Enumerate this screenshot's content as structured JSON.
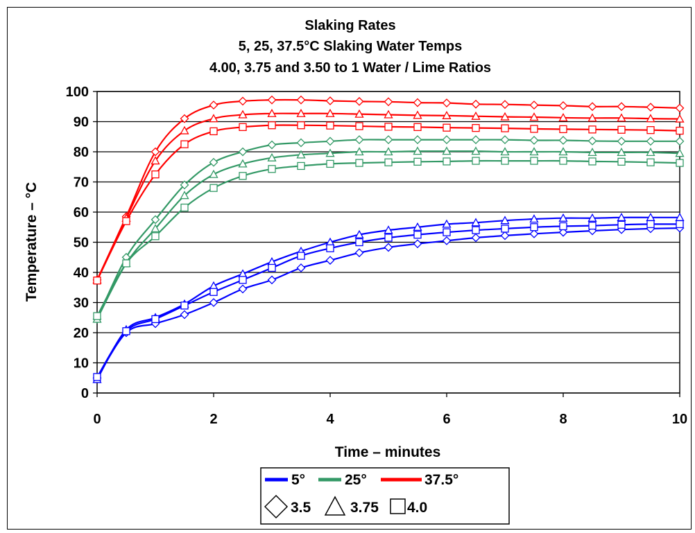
{
  "chart_data": {
    "type": "line",
    "title_lines": [
      "Slaking Rates",
      "5, 25, 37.5°C Slaking Water Temps",
      "4.00, 3.75 and 3.50 to 1 Water / Lime Ratios"
    ],
    "xlabel": "Time – minutes",
    "ylabel": "Temperature – °C",
    "xlim": [
      0,
      10
    ],
    "ylim": [
      0,
      100
    ],
    "x_ticks": [
      "0",
      "2",
      "4",
      "6",
      "8",
      "10"
    ],
    "y_ticks": [
      "0",
      "10",
      "20",
      "30",
      "40",
      "50",
      "60",
      "70",
      "80",
      "90",
      "100"
    ],
    "grid": "horizontal",
    "x": [
      0,
      0.5,
      1,
      1.5,
      2,
      2.5,
      3,
      3.5,
      4,
      4.5,
      5,
      5.5,
      6,
      6.5,
      7,
      7.5,
      8,
      8.5,
      9,
      9.5,
      10
    ],
    "colors": {
      "5": "#0000ff",
      "25": "#339966",
      "37.5": "#ff0000"
    },
    "legend": {
      "colors": [
        {
          "label": "5°",
          "color": "#0000ff"
        },
        {
          "label": "25°",
          "color": "#339966"
        },
        {
          "label": "37.5°",
          "color": "#ff0000"
        }
      ],
      "markers": [
        {
          "label": "3.5",
          "marker": "diamond"
        },
        {
          "label": "3.75",
          "marker": "triangle"
        },
        {
          "label": "4.0",
          "marker": "square"
        }
      ]
    },
    "series": [
      {
        "temp": "5",
        "ratio": "3.5",
        "marker": "diamond",
        "values": [
          5,
          20,
          23,
          26,
          30,
          34.5,
          37.5,
          41.5,
          44,
          46.5,
          48.3,
          49.5,
          50.5,
          51.5,
          52.2,
          52.8,
          53.3,
          53.8,
          54.2,
          54.5,
          54.7
        ]
      },
      {
        "temp": "5",
        "ratio": "3.75",
        "marker": "triangle",
        "values": [
          4.5,
          21,
          25,
          29.5,
          35.5,
          39.5,
          43.5,
          47,
          50,
          52.5,
          54,
          55,
          56,
          56.5,
          57.2,
          57.7,
          58,
          58,
          58.2,
          58.2,
          58.2
        ]
      },
      {
        "temp": "5",
        "ratio": "4.0",
        "marker": "square",
        "values": [
          5.3,
          20.5,
          24.5,
          29,
          33.5,
          37.5,
          41.5,
          45.5,
          48,
          50,
          51.5,
          52.5,
          53.3,
          54,
          54.5,
          55,
          55.3,
          55.5,
          55.8,
          56,
          56
        ]
      },
      {
        "temp": "25",
        "ratio": "3.5",
        "marker": "diamond",
        "values": [
          24.5,
          45,
          57.5,
          69,
          76.5,
          80,
          82.3,
          83,
          83.5,
          84,
          84,
          84,
          84,
          84,
          84,
          83.8,
          83.8,
          83.6,
          83.5,
          83.5,
          83.5
        ]
      },
      {
        "temp": "25",
        "ratio": "3.75",
        "marker": "triangle",
        "values": [
          24.5,
          43,
          54.5,
          65.5,
          72.5,
          76,
          78,
          79,
          79.5,
          80,
          80,
          80.2,
          80.2,
          80.2,
          80,
          80,
          80,
          79.8,
          79.8,
          79.8,
          79.5
        ]
      },
      {
        "temp": "25",
        "ratio": "4.0",
        "marker": "square",
        "values": [
          25.5,
          43,
          52,
          61.5,
          68,
          72,
          74.3,
          75.3,
          76,
          76.3,
          76.5,
          76.7,
          76.8,
          77,
          77,
          77,
          77,
          76.8,
          76.7,
          76.5,
          76.3
        ]
      },
      {
        "temp": "37.5",
        "ratio": "3.5",
        "marker": "diamond",
        "values": [
          37.5,
          58.5,
          80,
          91,
          95.5,
          96.8,
          97.2,
          97.2,
          96.9,
          96.7,
          96.6,
          96.3,
          96.2,
          95.8,
          95.7,
          95.5,
          95.3,
          95,
          95,
          94.8,
          94.5
        ]
      },
      {
        "temp": "37.5",
        "ratio": "3.75",
        "marker": "triangle",
        "values": [
          37.5,
          58,
          77,
          87,
          91,
          92.3,
          92.7,
          92.7,
          92.7,
          92.5,
          92.3,
          92.1,
          92,
          91.8,
          91.6,
          91.5,
          91.3,
          91.2,
          91.2,
          91,
          90.9
        ]
      },
      {
        "temp": "37.5",
        "ratio": "4.0",
        "marker": "square",
        "values": [
          37.3,
          57,
          72.5,
          82.5,
          86.8,
          88.2,
          88.8,
          88.8,
          88.7,
          88.5,
          88.3,
          88.2,
          88,
          87.9,
          87.8,
          87.6,
          87.5,
          87.4,
          87.3,
          87.2,
          87
        ]
      }
    ]
  }
}
